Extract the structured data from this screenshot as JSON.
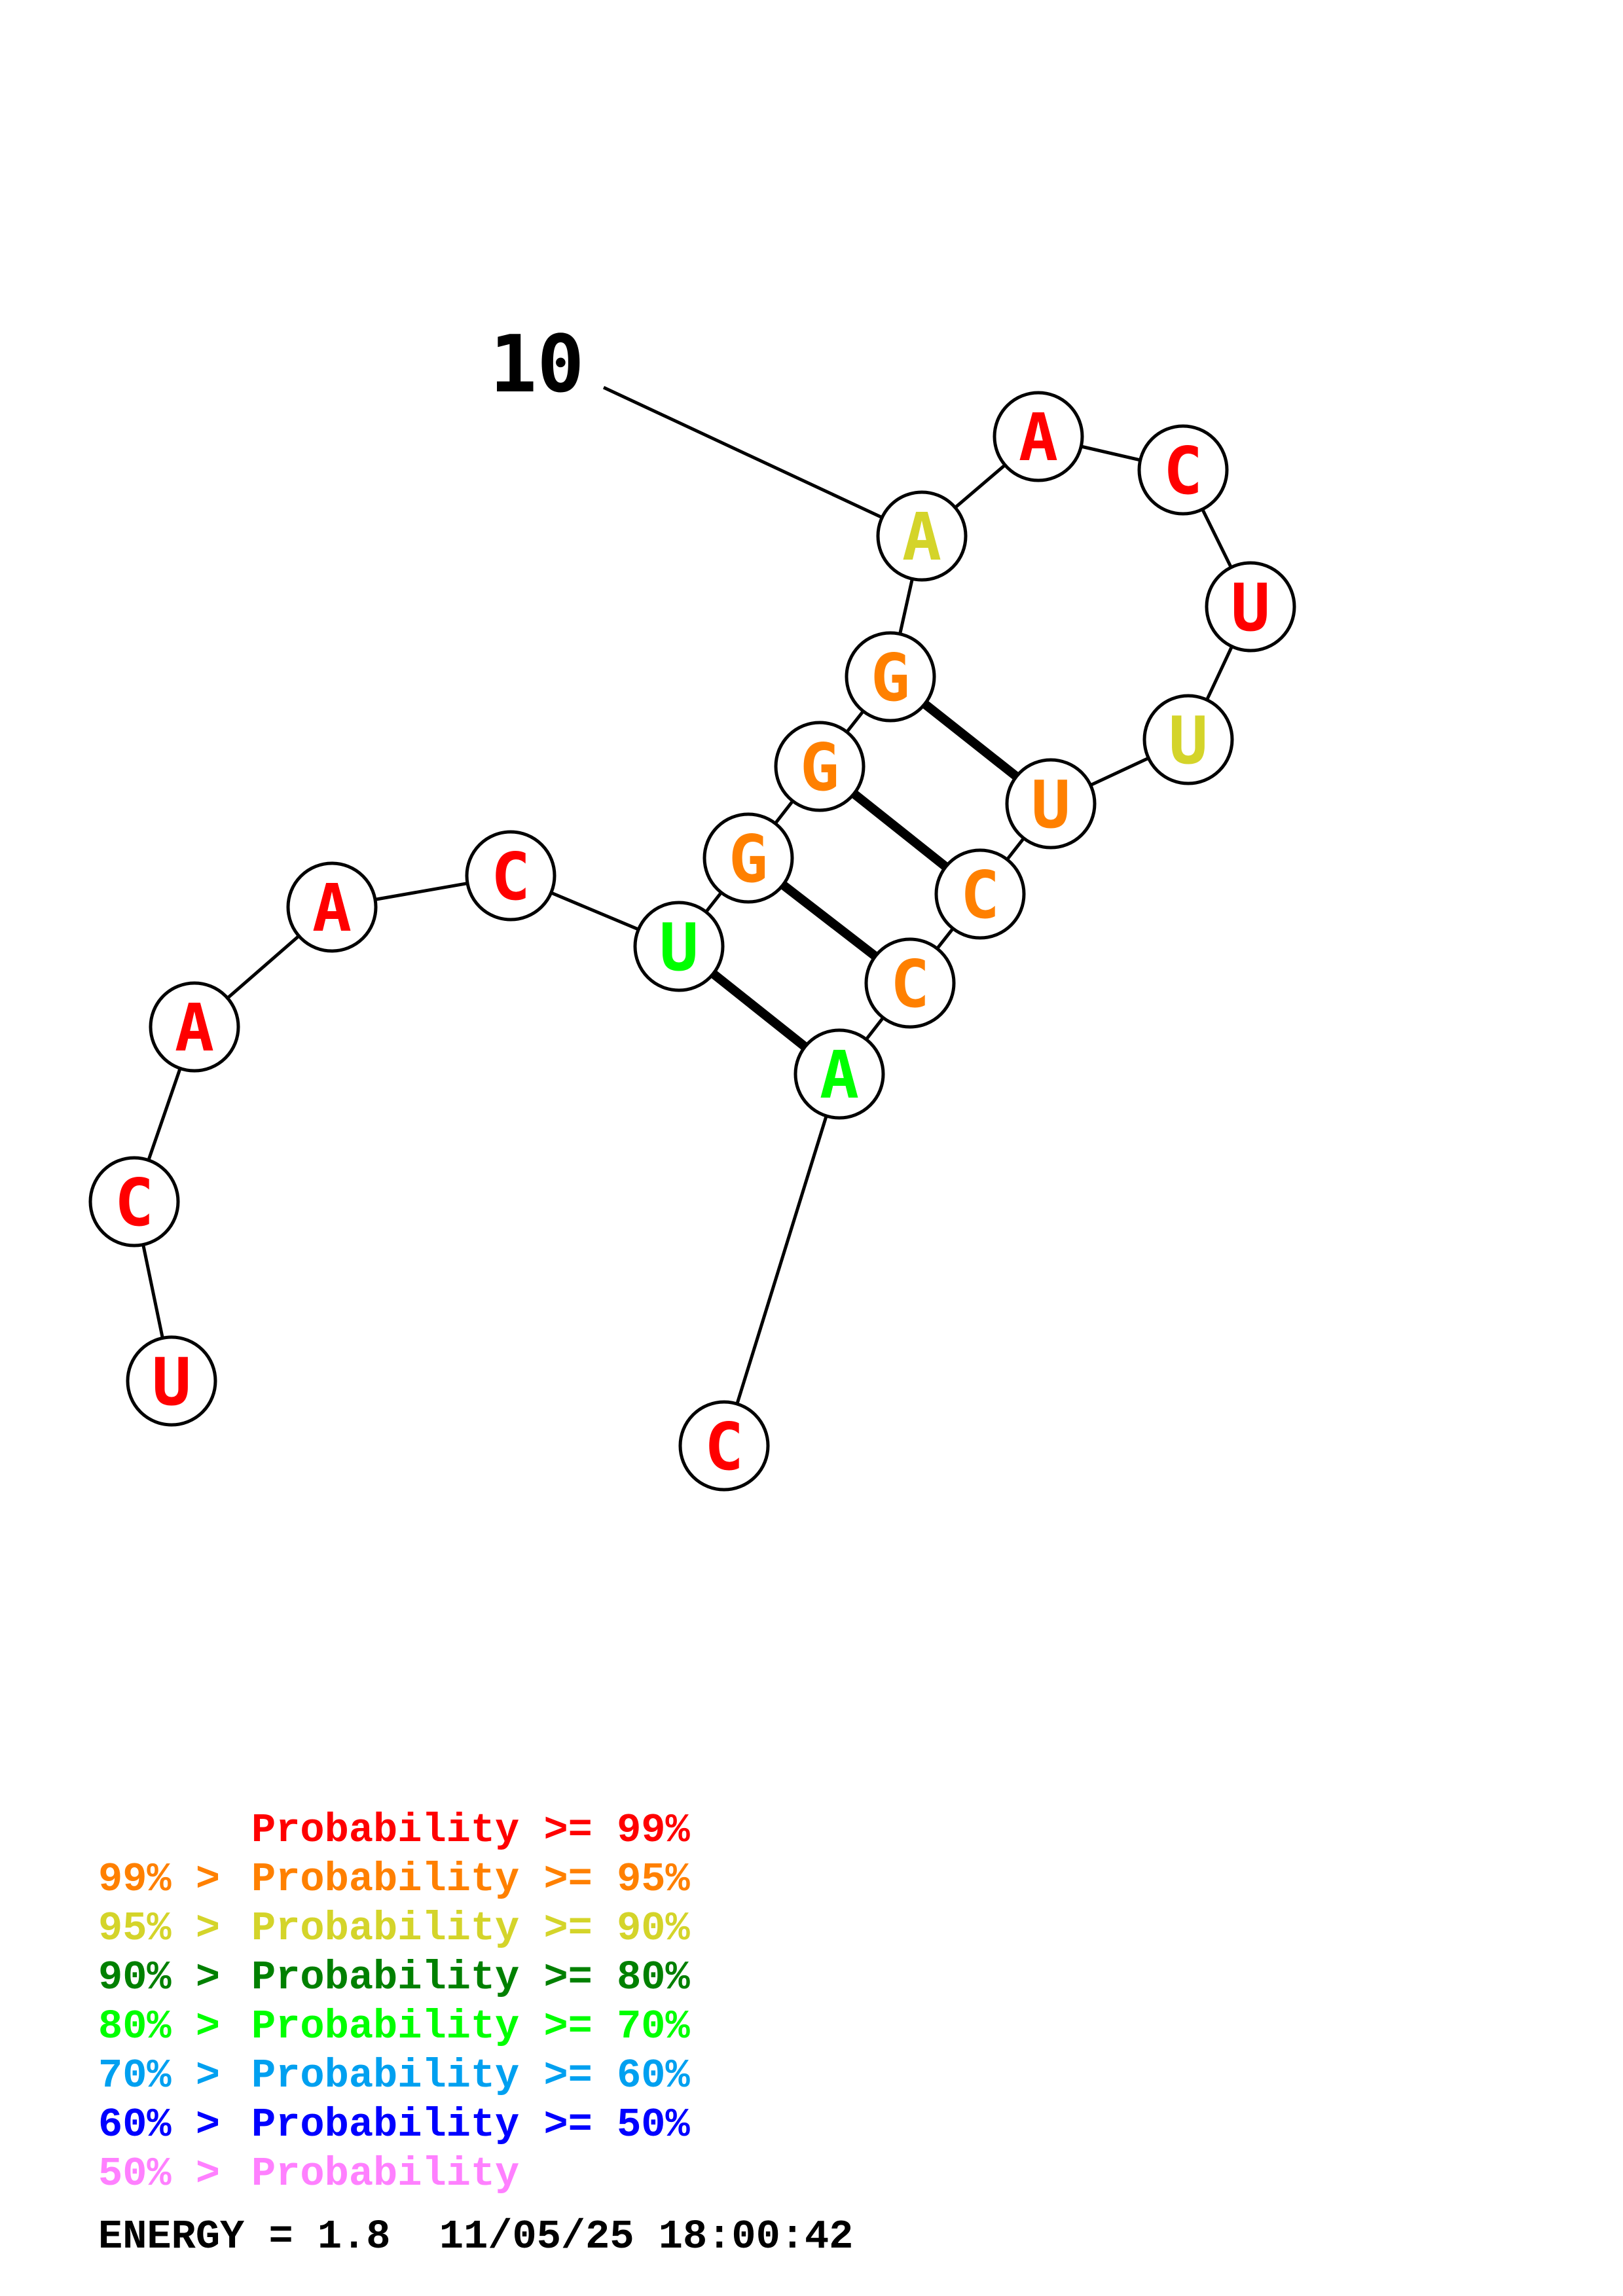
{
  "nucleotides": [
    {
      "letter": "U",
      "color": "#ff0000"
    },
    {
      "letter": "C",
      "color": "#ff0000"
    },
    {
      "letter": "A",
      "color": "#ff0000"
    },
    {
      "letter": "A",
      "color": "#ff0000"
    },
    {
      "letter": "C",
      "color": "#ff0000"
    },
    {
      "letter": "U",
      "color": "#00ff00"
    },
    {
      "letter": "G",
      "color": "#ff8000"
    },
    {
      "letter": "G",
      "color": "#ff8000"
    },
    {
      "letter": "G",
      "color": "#ff8000"
    },
    {
      "letter": "A",
      "color": "#d4d42a"
    },
    {
      "letter": "A",
      "color": "#ff0000"
    },
    {
      "letter": "C",
      "color": "#ff0000"
    },
    {
      "letter": "U",
      "color": "#ff0000"
    },
    {
      "letter": "U",
      "color": "#d4d42a"
    },
    {
      "letter": "U",
      "color": "#ff8000"
    },
    {
      "letter": "C",
      "color": "#ff8000"
    },
    {
      "letter": "C",
      "color": "#ff8000"
    },
    {
      "letter": "A",
      "color": "#00ff00"
    },
    {
      "letter": "C",
      "color": "#ff0000"
    }
  ],
  "base_pairs": [
    [
      6,
      18
    ],
    [
      7,
      17
    ],
    [
      8,
      16
    ],
    [
      9,
      15
    ]
  ],
  "index_marker": {
    "label": "10",
    "nucleotide": 10
  },
  "legend": [
    {
      "prefix": "    ",
      "label": "Probability >= 99%",
      "color": "#ff0000"
    },
    {
      "prefix": "99% > ",
      "label": "Probability >= 95%",
      "color": "#ff8000"
    },
    {
      "prefix": "95% > ",
      "label": "Probability >= 90%",
      "color": "#d4d42a"
    },
    {
      "prefix": "90% > ",
      "label": "Probability >= 80%",
      "color": "#008000"
    },
    {
      "prefix": "80% > ",
      "label": "Probability >= 70%",
      "color": "#00ff00"
    },
    {
      "prefix": "70% > ",
      "label": "Probability >= 60%",
      "color": "#00a0f0"
    },
    {
      "prefix": "60% > ",
      "label": "Probability >= 50%",
      "color": "#0000ff"
    },
    {
      "prefix": "50% > ",
      "label": "Probability",
      "color": "#ff80ff"
    }
  ],
  "energy_line": "ENERGY = 1.8  11/05/25 18:00:42"
}
